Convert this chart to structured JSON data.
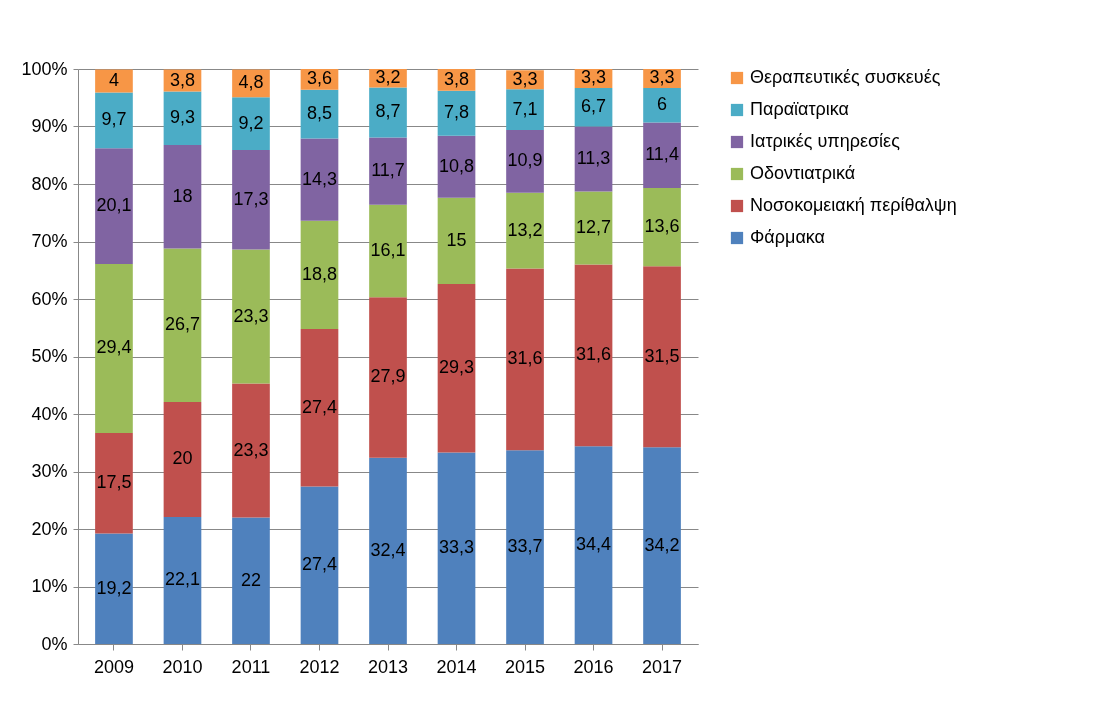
{
  "chart_data": {
    "type": "bar",
    "stacked": true,
    "categories": [
      "2009",
      "2010",
      "2011",
      "2012",
      "2013",
      "2014",
      "2015",
      "2016",
      "2017"
    ],
    "series": [
      {
        "name": "Φάρμακα",
        "color": "#4f81bd",
        "values": [
          19.2,
          22.1,
          22,
          27.4,
          32.4,
          33.3,
          33.7,
          34.4,
          34.2
        ],
        "value_labels": [
          "19,2",
          "22,1",
          "22",
          "27,4",
          "32,4",
          "33,3",
          "33,7",
          "34,4",
          "34,2"
        ]
      },
      {
        "name": "Νοσοκομειακή περίθαλψη",
        "color": "#c0504d",
        "values": [
          17.5,
          20,
          23.3,
          27.4,
          27.9,
          29.3,
          31.6,
          31.6,
          31.5
        ],
        "value_labels": [
          "17,5",
          "20",
          "23,3",
          "27,4",
          "27,9",
          "29,3",
          "31,6",
          "31,6",
          "31,5"
        ]
      },
      {
        "name": "Οδοντιατρικά",
        "color": "#9bbb59",
        "values": [
          29.4,
          26.7,
          23.3,
          18.8,
          16.1,
          15,
          13.2,
          12.7,
          13.6
        ],
        "value_labels": [
          "29,4",
          "26,7",
          "23,3",
          "18,8",
          "16,1",
          "15",
          "13,2",
          "12,7",
          "13,6"
        ]
      },
      {
        "name": "Ιατρικές υπηρεσίες",
        "color": "#8064a2",
        "values": [
          20.1,
          18,
          17.3,
          14.3,
          11.7,
          10.8,
          10.9,
          11.3,
          11.4
        ],
        "value_labels": [
          "20,1",
          "18",
          "17,3",
          "14,3",
          "11,7",
          "10,8",
          "10,9",
          "11,3",
          "11,4"
        ]
      },
      {
        "name": "Παραϊατρικα",
        "color": "#4bacc6",
        "values": [
          9.7,
          9.3,
          9.2,
          8.5,
          8.7,
          7.8,
          7.1,
          6.7,
          6
        ],
        "value_labels": [
          "9,7",
          "9,3",
          "9,2",
          "8,5",
          "8,7",
          "7,8",
          "7,1",
          "6,7",
          "6"
        ]
      },
      {
        "name": "Θεραπευτικές συσκευές",
        "color": "#f79646",
        "values": [
          4,
          3.8,
          4.8,
          3.6,
          3.2,
          3.8,
          3.3,
          3.3,
          3.3
        ],
        "value_labels": [
          "4",
          "3,8",
          "4,8",
          "3,6",
          "3,2",
          "3,8",
          "3,3",
          "3,3",
          "3,3"
        ]
      }
    ],
    "ylim": [
      0,
      100
    ],
    "yticks": [
      {
        "value": 0,
        "label": "0%"
      },
      {
        "value": 10,
        "label": "10%"
      },
      {
        "value": 20,
        "label": "20%"
      },
      {
        "value": 30,
        "label": "30%"
      },
      {
        "value": 40,
        "label": "40%"
      },
      {
        "value": 50,
        "label": "50%"
      },
      {
        "value": 60,
        "label": "60%"
      },
      {
        "value": 70,
        "label": "70%"
      },
      {
        "value": 80,
        "label": "80%"
      },
      {
        "value": 90,
        "label": "90%"
      },
      {
        "value": 100,
        "label": "100%"
      }
    ],
    "grid": "y",
    "legend": "right"
  }
}
